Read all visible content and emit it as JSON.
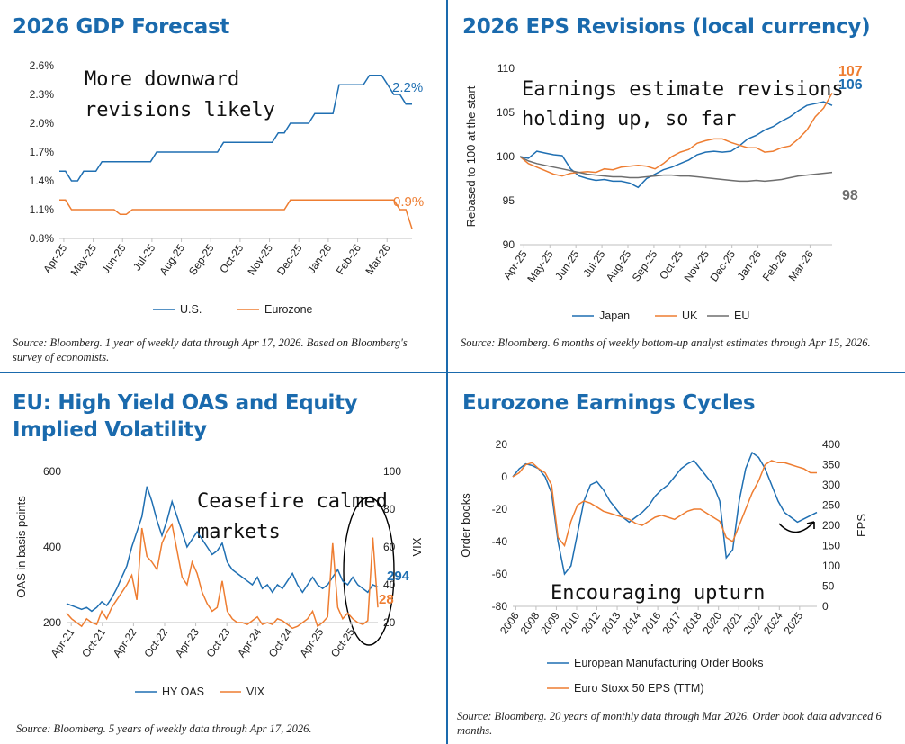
{
  "panels": {
    "gdp": {
      "title": "2026 GDP Forecast",
      "source": "Source: Bloomberg. 1 year of weekly data through Apr 17, 2026. Based on Bloomberg's survey of economists.",
      "annotation_line1": "More downward",
      "annotation_line2": "revisions likely",
      "end_label_us": "2.2%",
      "end_label_ez": "0.9%"
    },
    "eps": {
      "title": "2026 EPS Revisions (local currency)",
      "source": "Source: Bloomberg. 6 months of weekly bottom-up analyst estimates through Apr 15, 2026.",
      "annotation_line1": "Earnings estimate revisions",
      "annotation_line2": "holding up, so far",
      "end_label_uk": "107",
      "end_label_japan": "106",
      "end_label_eu": "98"
    },
    "hy": {
      "title": "EU: High Yield OAS and Equity Implied Volatility",
      "source": "Source: Bloomberg. 5 years of weekly data through Apr 17, 2026.",
      "annotation_line1": "Ceasefire calmed",
      "annotation_line2": "markets",
      "end_label_oas": "294",
      "end_label_vix": "28"
    },
    "cycles": {
      "title": "Eurozone Earnings Cycles",
      "source": "Source: Bloomberg. 20 years of monthly data through Mar 2026. Order book data advanced 6 months.",
      "annotation": "Encouraging upturn"
    }
  },
  "colors": {
    "blue": "#1f6fb2",
    "orange": "#ee7d31",
    "gray": "#6e6e6e",
    "title": "#1a6aad"
  },
  "chart_data": [
    {
      "id": "gdp",
      "type": "line",
      "title": "2026 GDP Forecast",
      "ylim": [
        0.8,
        2.6
      ],
      "yticks": [
        0.8,
        1.1,
        1.4,
        1.7,
        2.0,
        2.3,
        2.6
      ],
      "ytick_labels": [
        "0.8%",
        "1.1%",
        "1.4%",
        "1.7%",
        "2.0%",
        "2.3%",
        "2.6%"
      ],
      "xtick_labels": [
        "Apr-25",
        "May-25",
        "Jun-25",
        "Jul-25",
        "Aug-25",
        "Sep-25",
        "Oct-25",
        "Nov-25",
        "Dec-25",
        "Jan-26",
        "Feb-26",
        "Mar-26"
      ],
      "series": [
        {
          "name": "U.S.",
          "color": "#1f6fb2",
          "values": [
            1.5,
            1.5,
            1.4,
            1.4,
            1.5,
            1.5,
            1.5,
            1.6,
            1.6,
            1.6,
            1.6,
            1.6,
            1.6,
            1.6,
            1.6,
            1.6,
            1.7,
            1.7,
            1.7,
            1.7,
            1.7,
            1.7,
            1.7,
            1.7,
            1.7,
            1.7,
            1.7,
            1.8,
            1.8,
            1.8,
            1.8,
            1.8,
            1.8,
            1.8,
            1.8,
            1.8,
            1.9,
            1.9,
            2.0,
            2.0,
            2.0,
            2.0,
            2.1,
            2.1,
            2.1,
            2.1,
            2.4,
            2.4,
            2.4,
            2.4,
            2.4,
            2.5,
            2.5,
            2.5,
            2.4,
            2.3,
            2.3,
            2.2,
            2.2
          ]
        },
        {
          "name": "Eurozone",
          "color": "#ee7d31",
          "values": [
            1.2,
            1.2,
            1.1,
            1.1,
            1.1,
            1.1,
            1.1,
            1.1,
            1.1,
            1.1,
            1.05,
            1.05,
            1.1,
            1.1,
            1.1,
            1.1,
            1.1,
            1.1,
            1.1,
            1.1,
            1.1,
            1.1,
            1.1,
            1.1,
            1.1,
            1.1,
            1.1,
            1.1,
            1.1,
            1.1,
            1.1,
            1.1,
            1.1,
            1.1,
            1.1,
            1.1,
            1.1,
            1.1,
            1.2,
            1.2,
            1.2,
            1.2,
            1.2,
            1.2,
            1.2,
            1.2,
            1.2,
            1.2,
            1.2,
            1.2,
            1.2,
            1.2,
            1.2,
            1.2,
            1.2,
            1.2,
            1.1,
            1.1,
            0.9
          ]
        }
      ]
    },
    {
      "id": "eps",
      "type": "line",
      "ylabel": "Rebased to 100 at the start",
      "ylim": [
        90,
        110
      ],
      "yticks": [
        90,
        95,
        100,
        105,
        110
      ],
      "xtick_labels": [
        "Apr-25",
        "May-25",
        "Jun-25",
        "Jul-25",
        "Aug-25",
        "Sep-25",
        "Oct-25",
        "Nov-25",
        "Dec-25",
        "Jan-26",
        "Feb-26",
        "Mar-26"
      ],
      "series": [
        {
          "name": "Japan",
          "color": "#1f6fb2",
          "values": [
            100,
            99.8,
            100.6,
            100.4,
            100.2,
            100.1,
            98.6,
            97.8,
            97.5,
            97.3,
            97.4,
            97.2,
            97.2,
            97.0,
            96.5,
            97.5,
            98.0,
            98.5,
            98.8,
            99.2,
            99.6,
            100.2,
            100.5,
            100.6,
            100.5,
            100.6,
            101.2,
            102.0,
            102.4,
            103.0,
            103.4,
            104.0,
            104.5,
            105.2,
            105.8,
            106.0,
            106.2,
            105.8
          ]
        },
        {
          "name": "UK",
          "color": "#ee7d31",
          "values": [
            100,
            99.2,
            98.8,
            98.4,
            98.0,
            97.8,
            98.1,
            98.2,
            98.3,
            98.2,
            98.6,
            98.5,
            98.8,
            98.9,
            99.0,
            98.9,
            98.6,
            99.2,
            100.0,
            100.5,
            100.8,
            101.5,
            101.8,
            102.0,
            102.0,
            101.6,
            101.3,
            101.0,
            101.0,
            100.5,
            100.6,
            101.0,
            101.2,
            102.0,
            103.0,
            104.5,
            105.5,
            107.2
          ]
        },
        {
          "name": "EU",
          "color": "#6e6e6e",
          "values": [
            100,
            99.5,
            99.2,
            99.0,
            98.8,
            98.6,
            98.4,
            98.2,
            98.0,
            97.9,
            97.8,
            97.7,
            97.7,
            97.6,
            97.6,
            97.7,
            97.8,
            97.9,
            97.9,
            97.8,
            97.8,
            97.7,
            97.6,
            97.5,
            97.4,
            97.3,
            97.2,
            97.2,
            97.3,
            97.2,
            97.3,
            97.4,
            97.6,
            97.8,
            97.9,
            98.0,
            98.1,
            98.2
          ]
        }
      ]
    },
    {
      "id": "hy",
      "type": "line",
      "ylabel": "OAS in basis points",
      "y2label": "VIX",
      "ylim": [
        200,
        600
      ],
      "yticks": [
        200,
        400,
        600
      ],
      "y2lim": [
        20,
        100
      ],
      "y2ticks": [
        20,
        40,
        60,
        80,
        100
      ],
      "xtick_labels": [
        "Apr-21",
        "Oct-21",
        "Apr-22",
        "Oct-22",
        "Apr-23",
        "Oct-23",
        "Apr-24",
        "Oct-24",
        "Apr-25",
        "Oct-25"
      ],
      "series": [
        {
          "name": "HY OAS",
          "color": "#1f6fb2",
          "axis": "left",
          "values": [
            250,
            245,
            240,
            235,
            240,
            230,
            240,
            255,
            245,
            265,
            290,
            320,
            350,
            400,
            440,
            480,
            560,
            520,
            470,
            430,
            470,
            520,
            480,
            440,
            400,
            420,
            440,
            420,
            400,
            380,
            390,
            410,
            360,
            340,
            330,
            320,
            310,
            300,
            320,
            290,
            300,
            280,
            300,
            290,
            310,
            330,
            300,
            280,
            300,
            320,
            300,
            290,
            300,
            320,
            340,
            310,
            300,
            320,
            300,
            290,
            280,
            300,
            294
          ]
        },
        {
          "name": "VIX",
          "color": "#ee7d31",
          "axis": "right",
          "values": [
            25,
            22,
            20,
            18,
            22,
            20,
            19,
            26,
            22,
            28,
            32,
            36,
            40,
            45,
            32,
            70,
            55,
            52,
            48,
            62,
            68,
            72,
            58,
            44,
            40,
            52,
            46,
            36,
            30,
            26,
            28,
            42,
            26,
            22,
            20,
            20,
            19,
            21,
            23,
            19,
            20,
            19,
            22,
            21,
            19,
            17,
            18,
            20,
            22,
            26,
            18,
            20,
            23,
            62,
            28,
            22,
            25,
            22,
            20,
            19,
            21,
            65,
            28
          ]
        }
      ]
    },
    {
      "id": "cycles",
      "type": "line",
      "ylabel": "Order books",
      "y2label": "EPS",
      "ylim": [
        -80,
        20
      ],
      "yticks": [
        -80,
        -60,
        -40,
        -20,
        0,
        20
      ],
      "y2lim": [
        0,
        400
      ],
      "y2ticks": [
        0,
        50,
        100,
        150,
        200,
        250,
        300,
        350,
        400
      ],
      "xtick_labels": [
        "2006",
        "2008",
        "2009",
        "2010",
        "2012",
        "2013",
        "2014",
        "2016",
        "2017",
        "2018",
        "2020",
        "2021",
        "2022",
        "2024",
        "2025"
      ],
      "series": [
        {
          "name": "European Manufacturing Order Books",
          "color": "#1f6fb2",
          "axis": "left",
          "values": [
            0,
            5,
            8,
            7,
            5,
            0,
            -10,
            -40,
            -60,
            -55,
            -35,
            -15,
            -5,
            -3,
            -8,
            -15,
            -20,
            -25,
            -28,
            -25,
            -22,
            -18,
            -12,
            -8,
            -5,
            0,
            5,
            8,
            10,
            5,
            0,
            -5,
            -15,
            -50,
            -45,
            -15,
            5,
            15,
            12,
            5,
            -5,
            -15,
            -22,
            -25,
            -28,
            -26,
            -24,
            -22
          ]
        },
        {
          "name": "Euro Stoxx 50 EPS (TTM)",
          "color": "#ee7d31",
          "axis": "right",
          "values": [
            320,
            330,
            350,
            355,
            340,
            330,
            300,
            170,
            150,
            210,
            250,
            260,
            255,
            245,
            235,
            230,
            225,
            220,
            215,
            205,
            200,
            210,
            220,
            225,
            220,
            215,
            225,
            235,
            240,
            240,
            230,
            220,
            210,
            170,
            160,
            200,
            240,
            280,
            310,
            350,
            360,
            355,
            355,
            350,
            345,
            340,
            330,
            330
          ]
        }
      ]
    }
  ]
}
